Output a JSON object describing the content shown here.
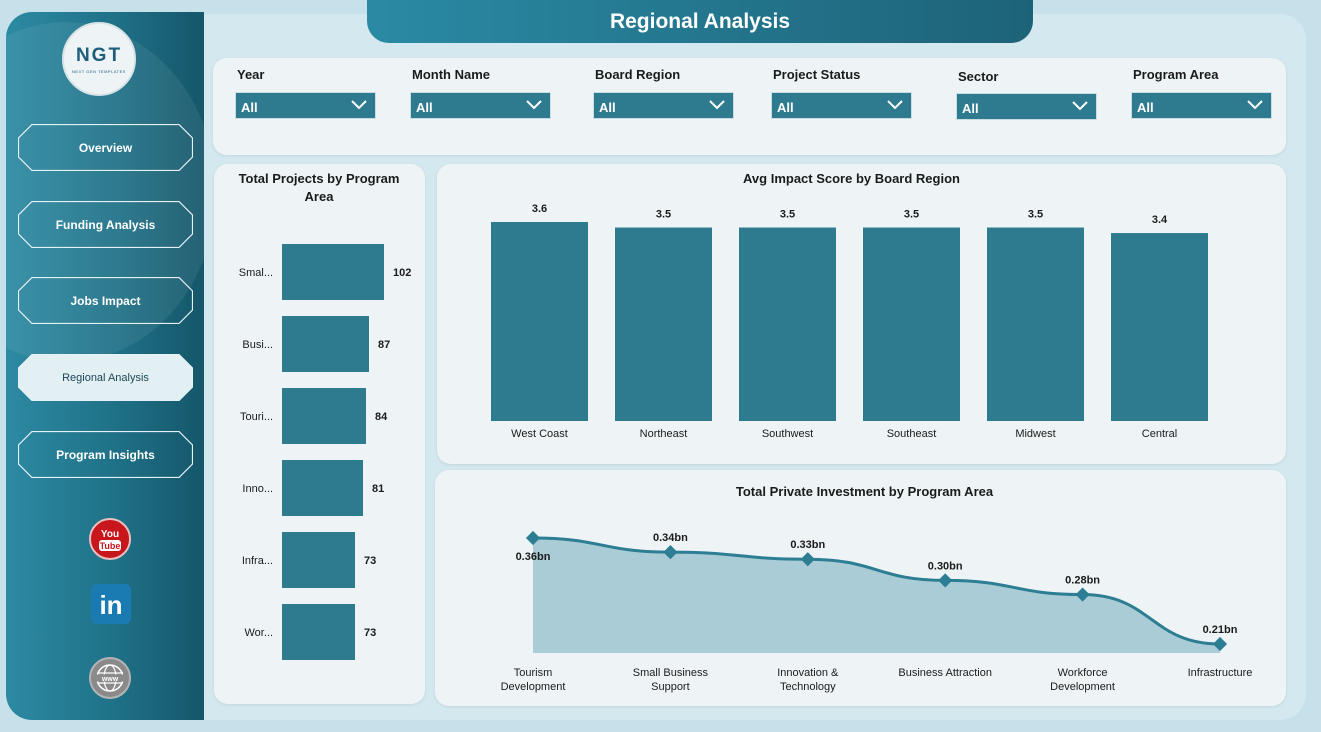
{
  "title": "Regional Analysis",
  "logo": {
    "text": "NGT",
    "subtext": "NEXT GEN TEMPLATES"
  },
  "nav": [
    {
      "label": "Overview",
      "active": false
    },
    {
      "label": "Funding Analysis",
      "active": false
    },
    {
      "label": "Jobs Impact",
      "active": false
    },
    {
      "label": "Regional Analysis",
      "active": true
    },
    {
      "label": "Program Insights",
      "active": false
    }
  ],
  "social": [
    {
      "icon": "youtube-icon",
      "text": "You Tube"
    },
    {
      "icon": "linkedin-icon",
      "text": "in"
    },
    {
      "icon": "web-icon",
      "text": "www"
    }
  ],
  "filters": [
    {
      "label": "Year",
      "value": "All"
    },
    {
      "label": "Month Name",
      "value": "All"
    },
    {
      "label": "Board Region",
      "value": "All"
    },
    {
      "label": "Project Status",
      "value": "All"
    },
    {
      "label": "Sector",
      "value": "All"
    },
    {
      "label": "Program Area",
      "value": "All"
    }
  ],
  "colors": {
    "accent": "#2e7b90",
    "area_fill": "#a4c9d4",
    "line": "#2d7d93"
  },
  "chart_data": [
    {
      "type": "bar",
      "orientation": "horizontal",
      "title": "Total Projects by Program Area",
      "categories": [
        "Smal...",
        "Busi...",
        "Touri...",
        "Inno...",
        "Infra...",
        "Wor..."
      ],
      "values": [
        102,
        87,
        84,
        81,
        73,
        73
      ],
      "value_labels": [
        "102",
        "87",
        "84",
        "81",
        "73",
        "73"
      ]
    },
    {
      "type": "bar",
      "title": "Avg Impact Score by Board Region",
      "categories": [
        "West Coast",
        "Northeast",
        "Southwest",
        "Southeast",
        "Midwest",
        "Central"
      ],
      "values": [
        3.6,
        3.5,
        3.5,
        3.5,
        3.5,
        3.4
      ],
      "value_labels": [
        "3.6",
        "3.5",
        "3.5",
        "3.5",
        "3.5",
        "3.4"
      ]
    },
    {
      "type": "area",
      "title": "Total Private Investment by Program Area",
      "categories": [
        "Tourism Development",
        "Small Business Support",
        "Innovation & Technology",
        "Business Attraction",
        "Workforce Development",
        "Infrastructure"
      ],
      "category_lines": [
        [
          "Tourism",
          "Development"
        ],
        [
          "Small Business",
          "Support"
        ],
        [
          "Innovation &",
          "Technology"
        ],
        [
          "Business Attraction"
        ],
        [
          "Workforce",
          "Development"
        ],
        [
          "Infrastructure"
        ]
      ],
      "values": [
        0.36,
        0.34,
        0.33,
        0.3,
        0.28,
        0.21
      ],
      "value_labels": [
        "0.36bn",
        "0.34bn",
        "0.33bn",
        "0.30bn",
        "0.28bn",
        "0.21bn"
      ],
      "unit": "bn"
    }
  ]
}
